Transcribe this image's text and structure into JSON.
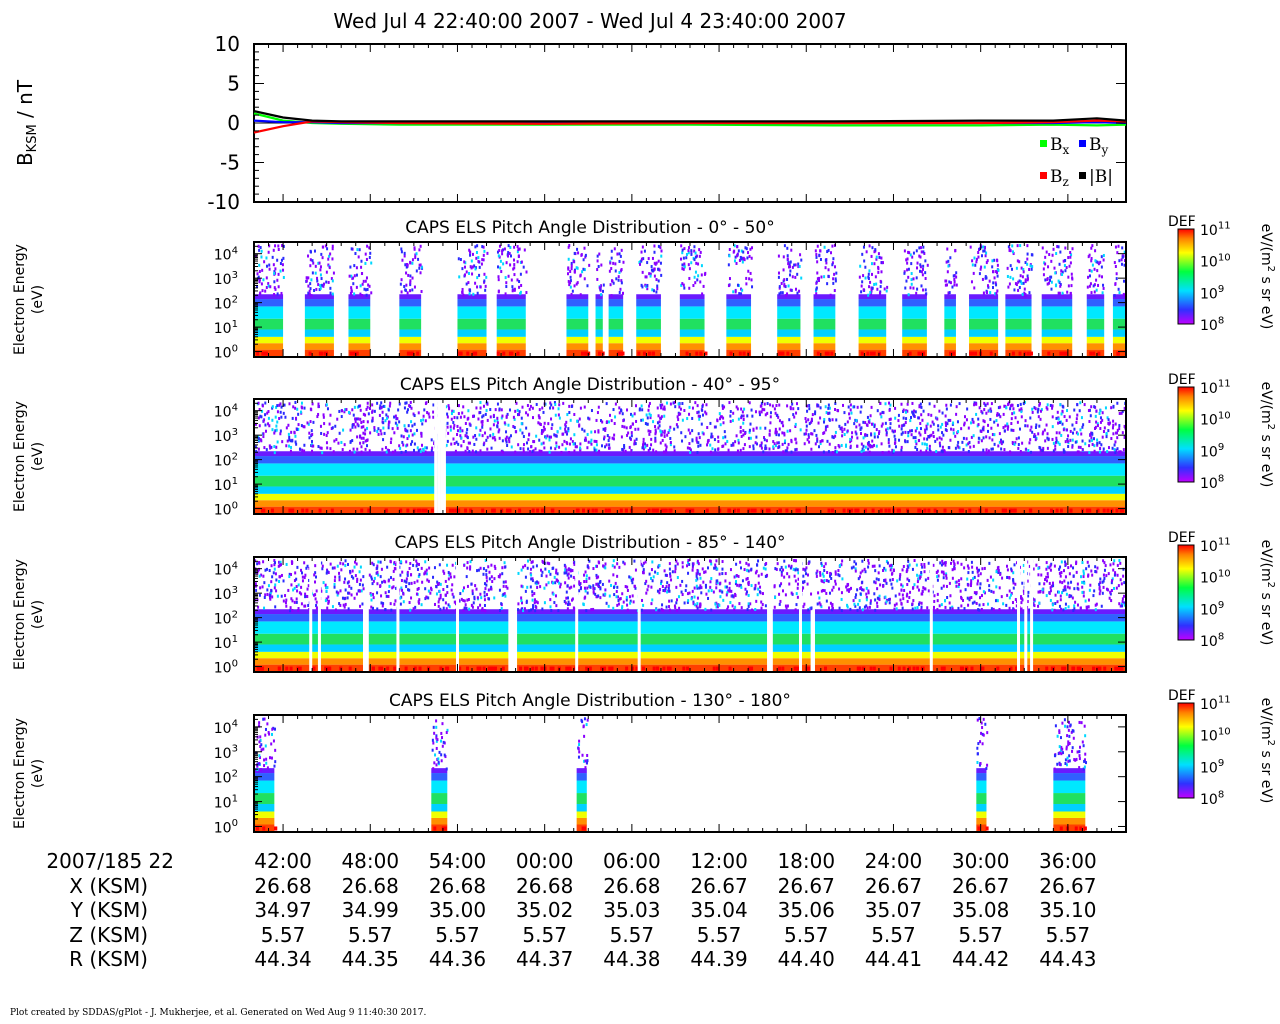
{
  "header": {
    "title": "Wed Jul 4 22:40:00 2007 - Wed Jul 4 23:40:00 2007"
  },
  "colors": {
    "bx": "#00ff00",
    "by": "#0000ff",
    "bz": "#ff0000",
    "bmag": "#000000"
  },
  "mag_panel": {
    "ylabel_main": "B",
    "ylabel_sub": "KSM",
    "ylabel_unit": " / nT",
    "ylim": [
      -10,
      10
    ],
    "yticks": [
      "10",
      "5",
      "0",
      "-5",
      "-10"
    ],
    "legend": [
      {
        "key": "bx",
        "base": "B",
        "sub": "x"
      },
      {
        "key": "by",
        "base": "B",
        "sub": "y"
      },
      {
        "key": "bz",
        "base": "B",
        "sub": "z"
      },
      {
        "key": "bmag",
        "base": "|B|",
        "sub": ""
      }
    ]
  },
  "spectro_panels": [
    {
      "title": "CAPS ELS Pitch Angle Distribution - 0° - 50°",
      "ylabel1": "Electron Energy",
      "ylabel2": "(eV)",
      "pattern": "gappy"
    },
    {
      "title": "CAPS ELS Pitch Angle Distribution - 40° - 95°",
      "ylabel1": "Electron Energy",
      "ylabel2": "(eV)",
      "pattern": "full"
    },
    {
      "title": "CAPS ELS Pitch Angle Distribution - 85° - 140°",
      "ylabel1": "Electron Energy",
      "ylabel2": "(eV)",
      "pattern": "dense"
    },
    {
      "title": "CAPS ELS Pitch Angle Distribution - 130° - 180°",
      "ylabel1": "Electron Energy",
      "ylabel2": "(eV)",
      "pattern": "sparse"
    }
  ],
  "energy_ticks": [
    {
      "base": "10",
      "exp": "4"
    },
    {
      "base": "10",
      "exp": "3"
    },
    {
      "base": "10",
      "exp": "2"
    },
    {
      "base": "10",
      "exp": "1"
    },
    {
      "base": "10",
      "exp": "0"
    }
  ],
  "colorbar": {
    "label": "DEF",
    "unit_pre": "eV/(m",
    "unit_exp": "2",
    "unit_post": " s sr eV)",
    "ticks": [
      {
        "base": "10",
        "exp": "11"
      },
      {
        "base": "10",
        "exp": "10"
      },
      {
        "base": "10",
        "exp": "9"
      },
      {
        "base": "10",
        "exp": "8"
      }
    ]
  },
  "time_axis": {
    "start_label": "2007/185 22",
    "labels": [
      "42:00",
      "48:00",
      "54:00",
      "00:00",
      "06:00",
      "12:00",
      "18:00",
      "24:00",
      "30:00",
      "36:00"
    ]
  },
  "ephemeris": [
    {
      "label": "X (KSM)",
      "values": [
        "26.68",
        "26.68",
        "26.68",
        "26.68",
        "26.68",
        "26.67",
        "26.67",
        "26.67",
        "26.67",
        "26.67"
      ]
    },
    {
      "label": "Y (KSM)",
      "values": [
        "34.97",
        "34.99",
        "35.00",
        "35.02",
        "35.03",
        "35.04",
        "35.06",
        "35.07",
        "35.08",
        "35.10"
      ]
    },
    {
      "label": "Z (KSM)",
      "values": [
        "5.57",
        "5.57",
        "5.57",
        "5.57",
        "5.57",
        "5.57",
        "5.57",
        "5.57",
        "5.57",
        "5.57"
      ]
    },
    {
      "label": "R (KSM)",
      "values": [
        "44.34",
        "44.35",
        "44.36",
        "44.37",
        "44.38",
        "44.39",
        "44.40",
        "44.41",
        "44.42",
        "44.43"
      ]
    }
  ],
  "footer": {
    "credit": "Plot created by SDDAS/gPlot - J. Mukherjee, et al.  Generated on Wed Aug 9 11:40:30 2017."
  },
  "chart_data": [
    {
      "type": "line",
      "x": [
        0,
        2,
        4,
        6,
        10,
        20,
        30,
        40,
        50,
        55,
        58,
        60
      ],
      "xlabel": "",
      "ylabel": "BKSM / nT",
      "ylim": [
        -10,
        10
      ],
      "series": [
        {
          "name": "Bx",
          "values": [
            1.2,
            0.3,
            0.0,
            -0.1,
            -0.2,
            -0.2,
            -0.2,
            -0.3,
            -0.3,
            -0.2,
            -0.3,
            -0.2
          ]
        },
        {
          "name": "By",
          "values": [
            0.3,
            0.1,
            0.1,
            0.0,
            0.0,
            0.0,
            0.0,
            0.0,
            0.0,
            0.0,
            0.1,
            0.0
          ]
        },
        {
          "name": "Bz",
          "values": [
            -1.2,
            -0.4,
            0.2,
            0.1,
            0.0,
            -0.1,
            0.0,
            0.0,
            0.0,
            0.1,
            0.3,
            0.2
          ]
        },
        {
          "name": "|B|",
          "values": [
            1.5,
            0.7,
            0.3,
            0.2,
            0.2,
            0.2,
            0.2,
            0.2,
            0.3,
            0.3,
            0.6,
            0.3
          ]
        }
      ]
    },
    {
      "type": "heatmap",
      "title": "CAPS ELS Pitch Angle Distribution - 0° - 50°",
      "ylabel": "Electron Energy (eV)",
      "ylim": [
        0.6,
        30000
      ],
      "yscale": "log",
      "zlabel": "DEF eV/(m2 s sr eV)",
      "zlim": [
        100000000.0,
        100000000000.0
      ]
    },
    {
      "type": "heatmap",
      "title": "CAPS ELS Pitch Angle Distribution - 40° - 95°",
      "ylabel": "Electron Energy (eV)",
      "ylim": [
        0.6,
        30000
      ],
      "yscale": "log",
      "zlabel": "DEF eV/(m2 s sr eV)",
      "zlim": [
        100000000.0,
        100000000000.0
      ]
    },
    {
      "type": "heatmap",
      "title": "CAPS ELS Pitch Angle Distribution - 85° - 140°",
      "ylabel": "Electron Energy (eV)",
      "ylim": [
        0.6,
        30000
      ],
      "yscale": "log",
      "zlabel": "DEF eV/(m2 s sr eV)",
      "zlim": [
        100000000.0,
        100000000000.0
      ]
    },
    {
      "type": "heatmap",
      "title": "CAPS ELS Pitch Angle Distribution - 130° - 180°",
      "ylabel": "Electron Energy (eV)",
      "ylim": [
        0.6,
        30000
      ],
      "yscale": "log",
      "zlabel": "DEF eV/(m2 s sr eV)",
      "zlim": [
        100000000.0,
        100000000000.0
      ]
    }
  ]
}
